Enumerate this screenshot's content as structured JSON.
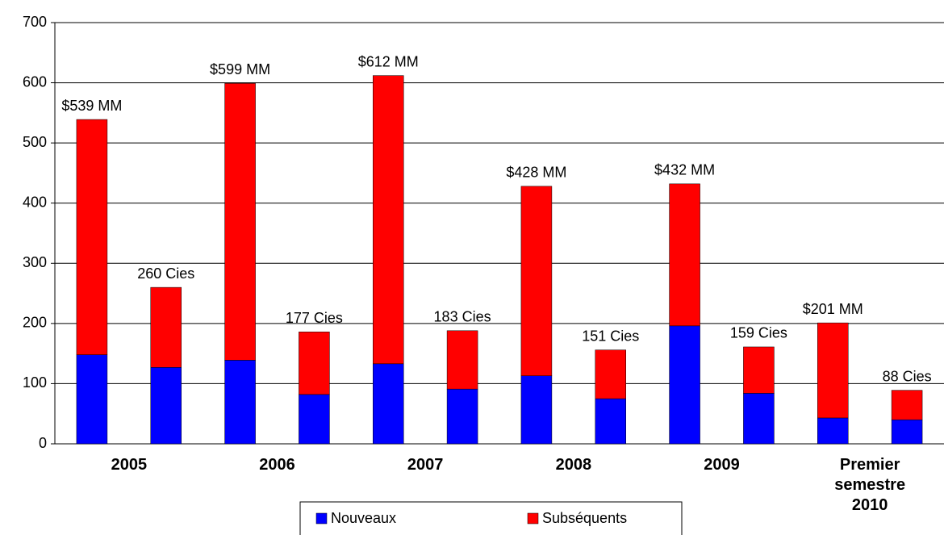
{
  "chart_data": {
    "type": "stacked_bar",
    "categories": [
      "2005",
      null,
      "2006",
      null,
      "2007",
      null,
      "2008",
      null,
      "2009",
      null,
      "Premier semestre 2010",
      null
    ],
    "series": [
      {
        "name": "Nouveaux",
        "color": "#0000ff",
        "values": [
          148,
          127,
          139,
          82,
          133,
          91,
          113,
          75,
          196,
          84,
          43,
          40
        ]
      },
      {
        "name": "Subséquents",
        "color": "#ff0000",
        "values": [
          391,
          133,
          460,
          104,
          479,
          97,
          315,
          81,
          236,
          77,
          158,
          49
        ]
      }
    ],
    "annotations": [
      "$539 MM",
      "260 Cies",
      "$599 MM",
      "177 Cies",
      "$612 MM",
      "183 Cies",
      "$428 MM",
      "151 Cies",
      "$432 MM",
      "159 Cies",
      "$201 MM",
      "88 Cies"
    ],
    "ylim": [
      0,
      700
    ],
    "yticks": [
      0,
      100,
      200,
      300,
      400,
      500,
      600,
      700
    ],
    "grid": true,
    "legend": "bottom"
  }
}
